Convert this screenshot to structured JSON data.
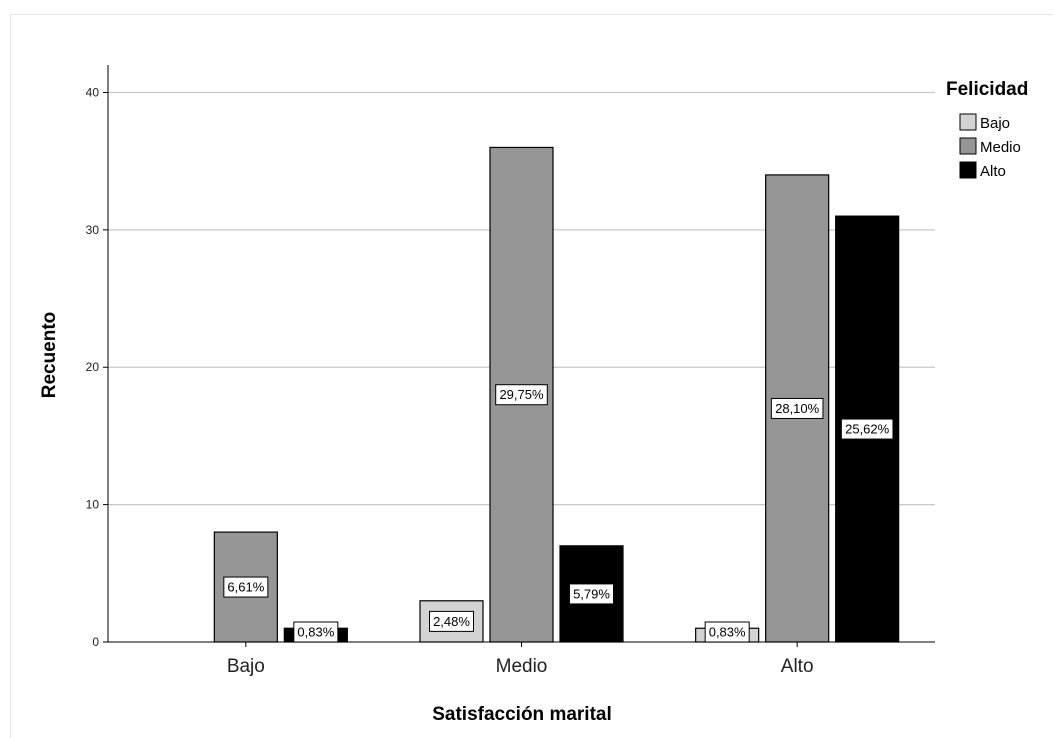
{
  "chart_data": {
    "type": "bar",
    "title": "",
    "xlabel": "Satisfacción marital",
    "ylabel": "Recuento",
    "categories": [
      "Bajo",
      "Medio",
      "Alto"
    ],
    "ylim": [
      0,
      42
    ],
    "yticks": [
      0,
      10,
      20,
      30,
      40
    ],
    "grid": true,
    "legend": {
      "title": "Felicidad",
      "placement": "top-right"
    },
    "series": [
      {
        "name": "Bajo",
        "color": "#d3d3d3",
        "values": [
          0,
          3,
          1
        ],
        "labels": [
          "",
          "2,48%",
          "0,83%"
        ]
      },
      {
        "name": "Medio",
        "color": "#969696",
        "values": [
          8,
          36,
          34
        ],
        "labels": [
          "6,61%",
          "29,75%",
          "28,10%"
        ]
      },
      {
        "name": "Alto",
        "color": "#000000",
        "values": [
          1,
          7,
          31
        ],
        "labels": [
          "0,83%",
          "5,79%",
          "25,62%"
        ]
      }
    ]
  }
}
